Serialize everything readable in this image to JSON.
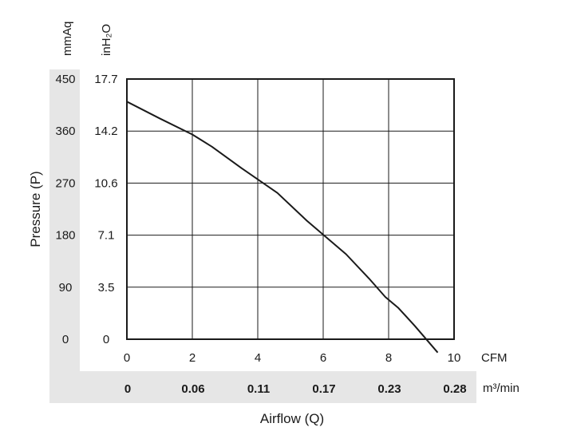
{
  "chart_data": {
    "type": "line",
    "xlabel": "Airflow (Q)",
    "ylabel": "Pressure (P)",
    "x_units": {
      "primary": "CFM",
      "secondary": "m³/min"
    },
    "y_units": {
      "primary": "mmAq",
      "secondary": "inH₂O"
    },
    "xlim": [
      0,
      10
    ],
    "ylim": [
      0,
      450
    ],
    "x_ticks": [
      "0",
      "2",
      "4",
      "6",
      "8",
      "10"
    ],
    "x_ticks_secondary": [
      "0",
      "0.06",
      "0.11",
      "0.17",
      "0.23",
      "0.28"
    ],
    "y_ticks": [
      "0",
      "90",
      "180",
      "270",
      "360",
      "450"
    ],
    "y_ticks_secondary": [
      "0",
      "3.5",
      "7.1",
      "10.6",
      "14.2",
      "17.7"
    ],
    "grid": true,
    "series": [
      {
        "x": [
          0,
          1.0,
          2.0,
          2.6,
          3.5,
          4.6,
          5.5,
          6.7,
          7.4,
          7.9,
          8.3,
          8.8,
          9.5
        ],
        "y": [
          411,
          382,
          354,
          333,
          296,
          253,
          205,
          147,
          105,
          73,
          54,
          23,
          -23
        ]
      }
    ],
    "line_color": "#1a1a1a",
    "band_color": "#e6e6e6"
  }
}
